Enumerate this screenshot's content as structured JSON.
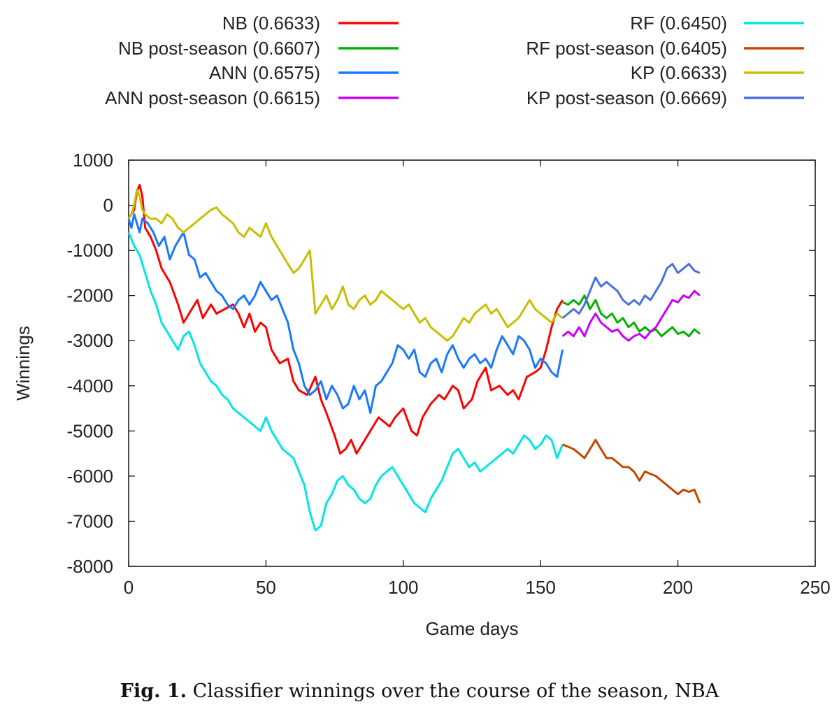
{
  "chart_data": {
    "type": "line",
    "title": "",
    "xlabel": "Game days",
    "ylabel": "Winnings",
    "xlim": [
      0,
      250
    ],
    "ylim": [
      -8000,
      1000
    ],
    "x_ticks": [
      0,
      50,
      100,
      150,
      200,
      250
    ],
    "y_ticks": [
      1000,
      0,
      -1000,
      -2000,
      -3000,
      -4000,
      -5000,
      -6000,
      -7000,
      -8000
    ],
    "grid": false,
    "legend_position": "top, two columns",
    "series": [
      {
        "name": "NB (0.6633)",
        "color": "#ff0000",
        "x": [
          0,
          2,
          3,
          4,
          5,
          6,
          8,
          10,
          12,
          15,
          18,
          20,
          22,
          25,
          27,
          30,
          32,
          35,
          38,
          40,
          42,
          44,
          46,
          48,
          50,
          52,
          55,
          58,
          60,
          62,
          65,
          68,
          70,
          72,
          75,
          77,
          79,
          81,
          83,
          85,
          87,
          89,
          91,
          93,
          95,
          97,
          100,
          103,
          105,
          107,
          110,
          113,
          115,
          118,
          120,
          122,
          125,
          127,
          130,
          132,
          135,
          138,
          140,
          142,
          145,
          148,
          150,
          152,
          154,
          156,
          158
        ],
        "y": [
          -300,
          -100,
          300,
          450,
          200,
          -500,
          -700,
          -1000,
          -1400,
          -1700,
          -2200,
          -2600,
          -2400,
          -2100,
          -2500,
          -2200,
          -2400,
          -2300,
          -2200,
          -2400,
          -2700,
          -2400,
          -2800,
          -2600,
          -2700,
          -3200,
          -3500,
          -3400,
          -3900,
          -4100,
          -4200,
          -3800,
          -4300,
          -4600,
          -5100,
          -5500,
          -5400,
          -5200,
          -5500,
          -5300,
          -5100,
          -4900,
          -4700,
          -4800,
          -4900,
          -4700,
          -4500,
          -5000,
          -5100,
          -4700,
          -4400,
          -4200,
          -4300,
          -4000,
          -4100,
          -4500,
          -4300,
          -3900,
          -3600,
          -4100,
          -4000,
          -4200,
          -4100,
          -4300,
          -3800,
          -3700,
          -3600,
          -3200,
          -2700,
          -2300,
          -2100
        ]
      },
      {
        "name": "NB post-season (0.6607)",
        "color": "#00b000",
        "x": [
          158,
          160,
          162,
          164,
          166,
          168,
          170,
          172,
          174,
          176,
          178,
          180,
          182,
          184,
          186,
          188,
          190,
          192,
          194,
          196,
          198,
          200,
          202,
          204,
          206,
          208
        ],
        "y": [
          -2150,
          -2200,
          -2100,
          -2200,
          -2000,
          -2300,
          -2100,
          -2400,
          -2500,
          -2400,
          -2600,
          -2500,
          -2700,
          -2600,
          -2800,
          -2700,
          -2800,
          -2750,
          -2900,
          -2800,
          -2700,
          -2850,
          -2800,
          -2900,
          -2750,
          -2850
        ]
      },
      {
        "name": "ANN (0.6575)",
        "color": "#1a78ff",
        "x": [
          0,
          1,
          2,
          4,
          5,
          7,
          9,
          11,
          13,
          15,
          17,
          19,
          20,
          22,
          24,
          26,
          28,
          30,
          32,
          34,
          36,
          38,
          40,
          42,
          44,
          46,
          48,
          50,
          52,
          54,
          56,
          58,
          60,
          62,
          64,
          66,
          68,
          70,
          72,
          74,
          76,
          78,
          80,
          82,
          84,
          86,
          88,
          90,
          92,
          94,
          96,
          98,
          100,
          102,
          104,
          106,
          108,
          110,
          112,
          114,
          116,
          118,
          120,
          122,
          124,
          126,
          128,
          130,
          132,
          134,
          136,
          138,
          140,
          142,
          144,
          146,
          148,
          150,
          152,
          154,
          156,
          158
        ],
        "y": [
          -300,
          -500,
          -200,
          -600,
          -300,
          -400,
          -600,
          -900,
          -700,
          -1200,
          -900,
          -700,
          -600,
          -1100,
          -1200,
          -1600,
          -1500,
          -1700,
          -1900,
          -2000,
          -2200,
          -2300,
          -2100,
          -2000,
          -2200,
          -2000,
          -1700,
          -1900,
          -2100,
          -2000,
          -2300,
          -2600,
          -3200,
          -3500,
          -4000,
          -4200,
          -4100,
          -3900,
          -4300,
          -4000,
          -4200,
          -4500,
          -4400,
          -4000,
          -4300,
          -4100,
          -4600,
          -4000,
          -3900,
          -3700,
          -3500,
          -3100,
          -3200,
          -3400,
          -3200,
          -3700,
          -3800,
          -3500,
          -3400,
          -3700,
          -3300,
          -3100,
          -3400,
          -3600,
          -3400,
          -3300,
          -3500,
          -3400,
          -3600,
          -3200,
          -2900,
          -3100,
          -3300,
          -2900,
          -3000,
          -3200,
          -3600,
          -3400,
          -3500,
          -3700,
          -3800,
          -3200
        ]
      },
      {
        "name": "ANN post-season (0.6615)",
        "color": "#c800ff",
        "x": [
          158,
          160,
          162,
          164,
          166,
          168,
          170,
          172,
          174,
          176,
          178,
          180,
          182,
          184,
          186,
          188,
          190,
          192,
          194,
          196,
          198,
          200,
          202,
          204,
          206,
          208
        ],
        "y": [
          -2900,
          -2800,
          -2900,
          -2700,
          -2900,
          -2600,
          -2400,
          -2600,
          -2700,
          -2800,
          -2750,
          -2900,
          -3000,
          -2900,
          -2850,
          -2950,
          -2800,
          -2700,
          -2500,
          -2300,
          -2100,
          -2150,
          -2000,
          -2050,
          -1900,
          -2000
        ]
      },
      {
        "name": "RF (0.6450)",
        "color": "#00e6e6",
        "x": [
          0,
          2,
          4,
          6,
          8,
          10,
          12,
          14,
          16,
          18,
          20,
          22,
          24,
          26,
          28,
          30,
          32,
          34,
          36,
          38,
          40,
          42,
          44,
          46,
          48,
          50,
          52,
          54,
          56,
          58,
          60,
          62,
          64,
          66,
          68,
          70,
          72,
          74,
          76,
          78,
          80,
          82,
          84,
          86,
          88,
          90,
          92,
          94,
          96,
          98,
          100,
          102,
          104,
          106,
          108,
          110,
          112,
          114,
          116,
          118,
          120,
          122,
          124,
          126,
          128,
          130,
          132,
          134,
          136,
          138,
          140,
          142,
          144,
          146,
          148,
          150,
          152,
          154,
          156,
          158
        ],
        "y": [
          -600,
          -900,
          -1100,
          -1500,
          -1900,
          -2200,
          -2600,
          -2800,
          -3000,
          -3200,
          -2900,
          -2800,
          -3100,
          -3500,
          -3700,
          -3900,
          -4000,
          -4200,
          -4300,
          -4500,
          -4600,
          -4700,
          -4800,
          -4900,
          -5000,
          -4700,
          -5000,
          -5200,
          -5400,
          -5500,
          -5600,
          -5900,
          -6200,
          -6800,
          -7200,
          -7100,
          -6600,
          -6400,
          -6100,
          -6000,
          -6200,
          -6300,
          -6500,
          -6600,
          -6500,
          -6200,
          -6000,
          -5900,
          -5800,
          -6000,
          -6200,
          -6400,
          -6600,
          -6700,
          -6800,
          -6500,
          -6300,
          -6100,
          -5800,
          -5500,
          -5400,
          -5600,
          -5800,
          -5700,
          -5900,
          -5800,
          -5700,
          -5600,
          -5500,
          -5400,
          -5500,
          -5300,
          -5100,
          -5200,
          -5400,
          -5300,
          -5100,
          -5200,
          -5600,
          -5300
        ]
      },
      {
        "name": "RF post-season (0.6405)",
        "color": "#c04800",
        "x": [
          158,
          160,
          162,
          164,
          166,
          168,
          170,
          172,
          174,
          176,
          178,
          180,
          182,
          184,
          186,
          188,
          190,
          192,
          194,
          196,
          198,
          200,
          202,
          204,
          206,
          208
        ],
        "y": [
          -5300,
          -5350,
          -5400,
          -5500,
          -5600,
          -5400,
          -5200,
          -5400,
          -5600,
          -5600,
          -5700,
          -5800,
          -5800,
          -5900,
          -6100,
          -5900,
          -5950,
          -6000,
          -6100,
          -6200,
          -6300,
          -6400,
          -6300,
          -6350,
          -6300,
          -6600
        ]
      },
      {
        "name": "KP (0.6633)",
        "color": "#c8be00",
        "x": [
          0,
          1,
          2,
          3,
          4,
          5,
          6,
          8,
          10,
          12,
          14,
          16,
          18,
          20,
          22,
          24,
          26,
          28,
          30,
          32,
          34,
          36,
          38,
          40,
          42,
          44,
          46,
          48,
          50,
          52,
          54,
          56,
          58,
          60,
          62,
          64,
          66,
          68,
          70,
          72,
          74,
          76,
          78,
          80,
          82,
          84,
          86,
          88,
          90,
          92,
          94,
          96,
          98,
          100,
          102,
          104,
          106,
          108,
          110,
          112,
          114,
          116,
          118,
          120,
          122,
          124,
          126,
          128,
          130,
          132,
          134,
          136,
          138,
          140,
          142,
          144,
          146,
          148,
          150,
          152,
          154,
          156,
          158
        ],
        "y": [
          -300,
          -200,
          0,
          350,
          200,
          -100,
          -200,
          -300,
          -300,
          -400,
          -200,
          -300,
          -500,
          -600,
          -500,
          -400,
          -300,
          -200,
          -100,
          -50,
          -200,
          -300,
          -400,
          -600,
          -700,
          -500,
          -600,
          -700,
          -400,
          -700,
          -900,
          -1100,
          -1300,
          -1500,
          -1400,
          -1200,
          -1000,
          -2400,
          -2200,
          -2000,
          -2300,
          -2100,
          -1800,
          -2200,
          -2300,
          -2100,
          -2000,
          -2200,
          -2100,
          -1900,
          -2000,
          -2100,
          -2200,
          -2300,
          -2200,
          -2400,
          -2600,
          -2500,
          -2700,
          -2800,
          -2900,
          -3000,
          -2900,
          -2700,
          -2500,
          -2600,
          -2400,
          -2300,
          -2200,
          -2400,
          -2300,
          -2500,
          -2700,
          -2600,
          -2500,
          -2300,
          -2100,
          -2300,
          -2400,
          -2500,
          -2600,
          -2400,
          -2500
        ]
      },
      {
        "name": "KP post-season (0.6669)",
        "color": "#4a6fe0",
        "x": [
          158,
          160,
          162,
          164,
          166,
          168,
          170,
          172,
          174,
          176,
          178,
          180,
          182,
          184,
          186,
          188,
          190,
          192,
          194,
          196,
          198,
          200,
          202,
          204,
          206,
          208
        ],
        "y": [
          -2500,
          -2400,
          -2300,
          -2400,
          -2200,
          -1900,
          -1600,
          -1800,
          -1700,
          -1800,
          -1900,
          -2100,
          -2200,
          -2100,
          -2200,
          -2000,
          -2100,
          -1900,
          -1700,
          -1400,
          -1300,
          -1500,
          -1400,
          -1300,
          -1450,
          -1500
        ]
      }
    ]
  },
  "caption": {
    "label": "Fig. 1.",
    "text": " Classifier winnings over the course of the season, NBA"
  }
}
